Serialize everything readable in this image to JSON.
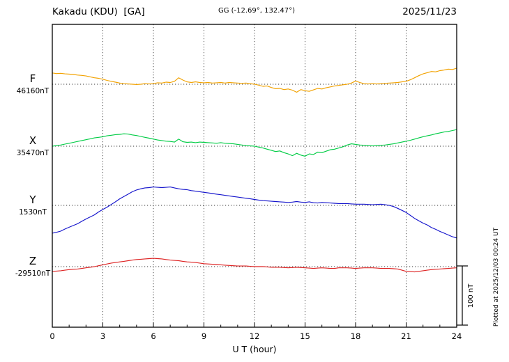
{
  "header": {
    "title": "Kakadu (KDU)  [GA]",
    "coords": "GG (-12.69°, 132.47°)",
    "date": "2025/11/23"
  },
  "footer": {
    "plotted_at": "Plotted at 2025/12/03 00:24 UT"
  },
  "chart_data": {
    "type": "line",
    "title": "Kakadu (KDU) [GA] magnetogram 2025/11/23",
    "x_label": "U T (hour)",
    "x_range": [
      0,
      24
    ],
    "x_ticks": [
      0,
      3,
      6,
      9,
      12,
      15,
      18,
      21,
      24
    ],
    "grid": "dotted",
    "sample_step_hours": 0.25,
    "values_unit": "nT offset from channel baseline",
    "scale_bar": {
      "label": "100 nT",
      "span_nT": 100
    },
    "series": [
      {
        "name": "F",
        "baseline_label": "46160nT",
        "color": "#f2a200",
        "values": [
          19,
          18,
          18.5,
          17.5,
          17,
          16.5,
          15.5,
          15,
          14,
          12.5,
          11,
          10,
          8.5,
          6.5,
          5,
          3.5,
          2,
          1,
          0.5,
          0,
          -0.5,
          0,
          1,
          0.5,
          1,
          2.5,
          2,
          3.5,
          3,
          5,
          11,
          7,
          4,
          3,
          4,
          3,
          2.5,
          3,
          2,
          2.5,
          3,
          2,
          3,
          2.5,
          2,
          1.5,
          2,
          1,
          0,
          -1.5,
          -3.5,
          -3,
          -5.5,
          -7.5,
          -7,
          -9,
          -8,
          -10,
          -13.5,
          -9,
          -11,
          -12,
          -9.5,
          -7,
          -8,
          -6,
          -4.5,
          -3,
          -2,
          -1,
          0,
          2,
          5.5,
          3,
          1,
          0.5,
          1,
          0.5,
          1,
          1.5,
          2,
          2.5,
          3,
          4,
          5,
          7.5,
          11,
          14.5,
          17.5,
          19.5,
          21.5,
          21,
          23,
          24,
          25.5,
          25,
          27
        ]
      },
      {
        "name": "X",
        "baseline_label": "35470nT",
        "color": "#00cc44",
        "values": [
          0,
          1,
          2,
          3.5,
          5,
          6.5,
          8,
          9.5,
          11,
          12.5,
          14,
          15,
          16,
          17.5,
          18.5,
          19.5,
          20,
          21,
          20.5,
          19,
          18,
          16.5,
          15,
          13.5,
          12,
          10.5,
          9.5,
          8.5,
          8,
          7,
          12,
          7.5,
          6.5,
          7,
          6,
          7,
          6.5,
          6,
          5.5,
          5,
          6,
          5,
          4.5,
          4,
          3,
          2,
          1,
          0.5,
          0,
          -1.5,
          -3,
          -5,
          -7,
          -9,
          -8,
          -11,
          -13,
          -16,
          -12,
          -15,
          -17,
          -13,
          -14,
          -10,
          -11,
          -8.5,
          -6,
          -5,
          -3,
          -1,
          2,
          4,
          3,
          2,
          1.5,
          1,
          0.5,
          1,
          1.5,
          2,
          3,
          4,
          5.5,
          7,
          8.5,
          10,
          12,
          14,
          16,
          17.5,
          19,
          21,
          22.5,
          24,
          25,
          26.5,
          28
        ]
      },
      {
        "name": "Y",
        "baseline_label": "1530nT",
        "color": "#1414cc",
        "values": [
          -47,
          -45.5,
          -43.5,
          -40,
          -37,
          -34,
          -31,
          -27,
          -23,
          -19.5,
          -16,
          -11,
          -7,
          -3,
          1.5,
          6,
          11,
          15,
          19,
          23,
          26,
          28,
          29.5,
          30,
          31,
          30.5,
          30,
          30.5,
          31,
          29.5,
          28,
          27,
          26.5,
          25,
          24,
          23,
          22,
          21,
          20,
          19,
          18,
          17,
          16,
          15,
          14,
          13,
          12,
          11,
          10,
          9,
          8,
          7.5,
          7,
          6.5,
          6,
          5.5,
          5,
          5.5,
          6.5,
          5.5,
          5,
          6,
          4.5,
          4,
          5,
          4.5,
          4,
          3.5,
          3,
          3,
          3,
          2.5,
          2,
          2,
          2,
          1.5,
          1,
          1.5,
          2,
          1,
          0,
          -2,
          -5,
          -8.5,
          -12,
          -17,
          -22,
          -26,
          -30,
          -33,
          -37.5,
          -40.5,
          -44,
          -47,
          -50,
          -53,
          -55
        ]
      },
      {
        "name": "Z",
        "baseline_label": "-29510nT",
        "color": "#dd2222",
        "values": [
          -8,
          -7.5,
          -7,
          -6,
          -5,
          -4.5,
          -4,
          -3,
          -2,
          -1,
          0,
          1.5,
          3,
          4.5,
          6,
          7,
          8,
          9,
          10,
          11,
          12,
          12.5,
          13,
          13.5,
          14,
          13.5,
          13,
          12,
          11,
          10.5,
          10,
          9,
          8,
          7.5,
          7,
          6,
          5,
          4.5,
          4,
          3.5,
          3,
          2.5,
          2,
          1.5,
          1,
          1,
          1,
          0.5,
          0,
          0,
          0,
          -0.5,
          -1,
          -1,
          -1,
          -1.5,
          -2,
          -1.5,
          -1,
          -1.5,
          -2,
          -2.5,
          -3,
          -2.5,
          -2,
          -2.5,
          -3,
          -3,
          -2,
          -2,
          -2,
          -2.5,
          -3,
          -2.5,
          -2,
          -2,
          -2,
          -2.5,
          -3,
          -3,
          -3,
          -3.5,
          -4,
          -6,
          -8,
          -8.5,
          -9,
          -8,
          -7,
          -6,
          -5,
          -4.5,
          -4,
          -3.5,
          -3,
          -2.5,
          -2
        ]
      }
    ]
  }
}
